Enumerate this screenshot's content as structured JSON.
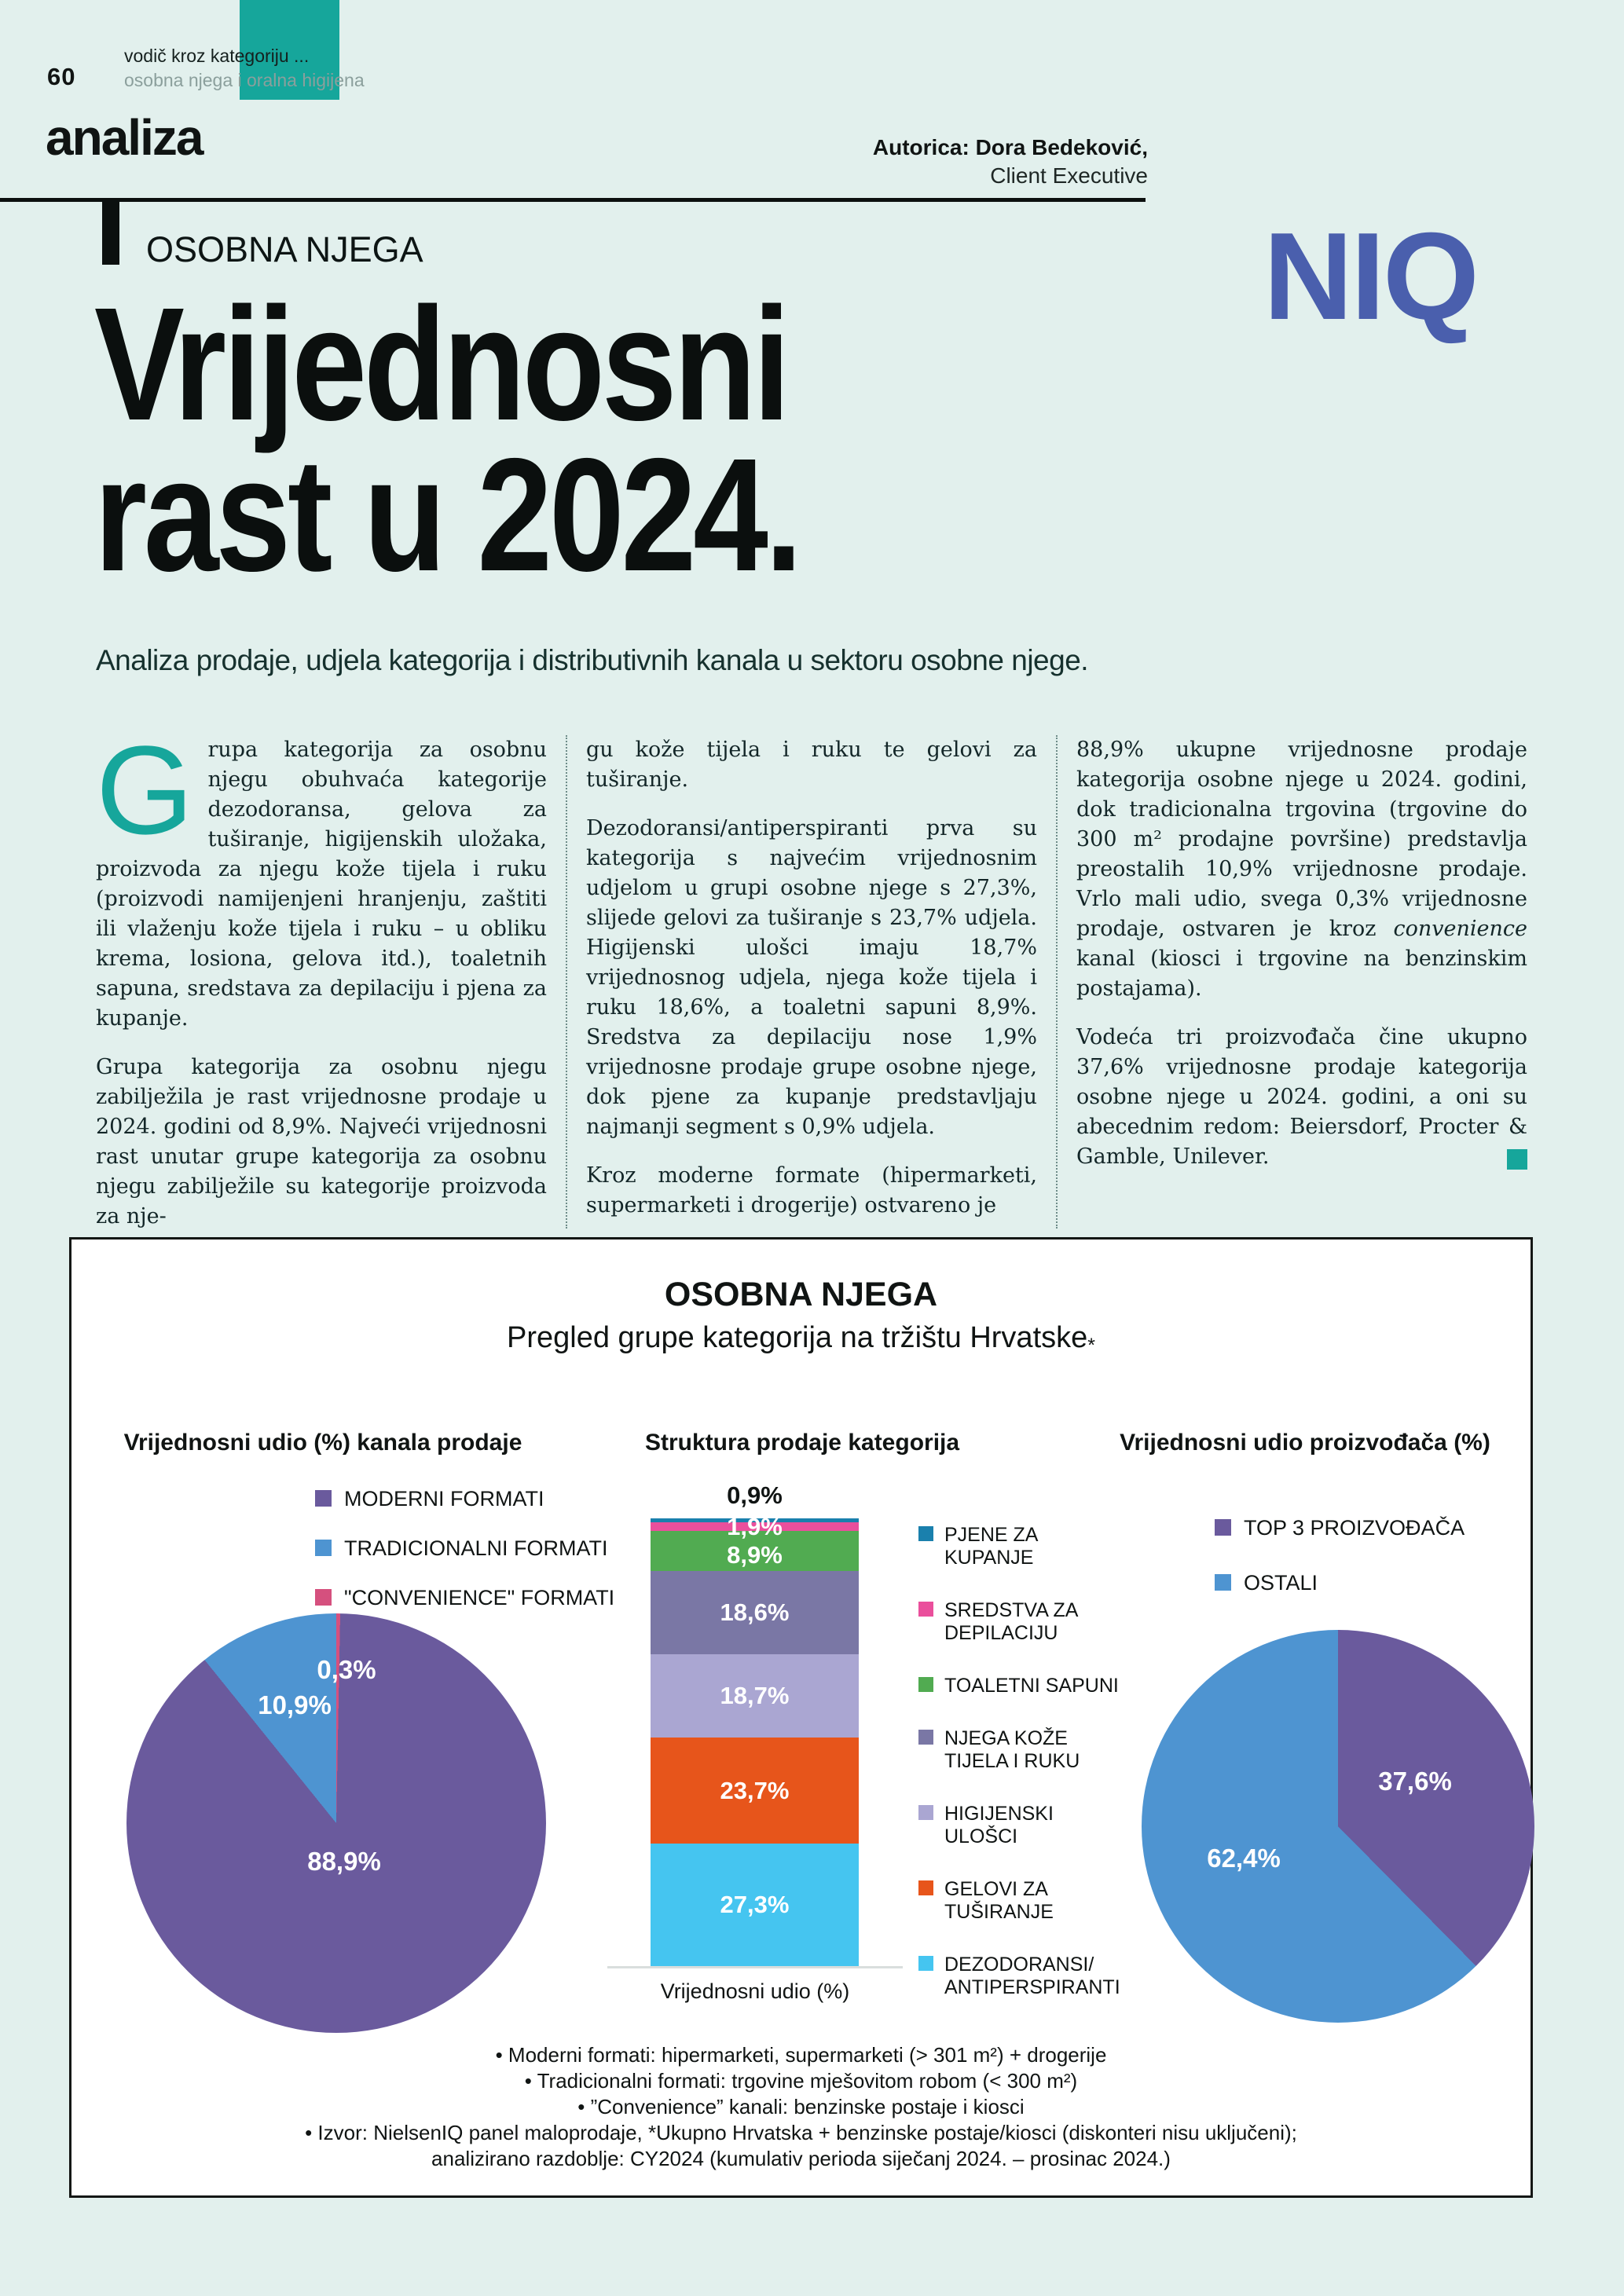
{
  "colors": {
    "background": "#e2f0ed",
    "accent_teal": "#16a69b",
    "niq_blue": "#4a5fad",
    "ink": "#101413",
    "kicker_gray": "#8b9f9c",
    "pie_purple": "#6a5a9d",
    "pie_blue": "#4e94d1",
    "pie_pink": "#d5507e"
  },
  "header": {
    "page_number": "60",
    "kicker_line1": "vodič kroz kategoriju ...",
    "kicker_line2": "osobna njega i oralna higijena",
    "section": "analiza",
    "author_name": "Autorica: Dora Bedeković,",
    "author_role": "Client Executive"
  },
  "hero": {
    "eyebrow": "OSOBNA NJEGA",
    "title_line1": "Vrijednosni",
    "title_line2": "rast u 2024.",
    "logo_text": "NIQ",
    "lede": "Analiza prodaje, udjela kategorija i distributivnih kanala u sektoru osobne njege."
  },
  "article": {
    "col1": {
      "dropcap": "G",
      "p1": "rupa kategorija za osobnu njegu obuhvaća kategorije dezodoransa, gelova za tuširanje, higijenskih uložaka, proizvoda za njegu kože tijela i ruku (proizvodi namijenjeni hranjenju, zaštiti ili vlaženju kože tijela i ruku – u obliku krema, losiona, gelova itd.), toaletnih sapuna, sredstava za depilaciju i pjena za kupanje.",
      "p2": "Grupa kategorija za osobnu njegu zabilježila je rast vrijednosne prodaje u 2024. godini od 8,9%. Najveći vrijednosni rast unutar grupe kategorija za osobnu njegu zabilježile su kategorije proizvoda za nje-"
    },
    "col2": {
      "p1": "gu kože tijela i ruku te gelovi za tuširanje.",
      "p2": "Dezodoransi/antiperspiranti prva su kategorija s najvećim vrijednosnim udjelom u grupi osobne njege s 27,3%, slijede gelovi za tuširanje s 23,7% udjela. Higijenski ulošci imaju 18,7% vrijednosnog udjela, njega kože tijela i ruku 18,6%, a toaletni sapuni 8,9%. Sredstva za depilaciju nose 1,9% vrijednosne prodaje grupe osobne njege, dok pjene za kupanje predstavljaju najmanji segment s 0,9% udjela.",
      "p3": "Kroz moderne formate (hipermarketi, supermarketi i drogerije) ostvareno je"
    },
    "col3": {
      "p1_pre": "88,9% ukupne vrijednosne prodaje kategorija osobne njege u 2024. godini, dok tradicionalna trgovina (trgovine do 300 m² prodajne površine) predstavlja preostalih 10,9% vrijednosne prodaje. Vrlo mali udio, svega 0,3% vrijednosne prodaje, ostvaren je kroz ",
      "p1_italic": "convenience",
      "p1_post": " kanal (kiosci i trgovine na benzinskim postajama).",
      "p2": "Vodeća tri proizvođača čine ukupno 37,6% vrijednosne prodaje kategorija osobne njege u 2024. godini, a oni su abecednim redom: Beiersdorf, Procter & Gamble, Unilever."
    }
  },
  "infographic": {
    "title": "OSOBNA NJEGA",
    "subtitle": "Pregled grupe kategorija na tržištu Hrvatske",
    "subtitle_mark": "*",
    "footnotes": [
      "•    Moderni formati: hipermarketi, supermarketi (> 301 m²) + drogerije",
      "•    Tradicionalni formati: trgovine mješovitom robom (< 300 m²)",
      "•    ”Convenience” kanali: benzinske postaje i kiosci",
      "•    Izvor: NielsenIQ panel maloprodaje, *Ukupno Hrvatska + benzinske postaje/kiosci  (diskonteri nisu uključeni);",
      "analizirano razdoblje: CY2024 (kumulativ perioda siječanj 2024. – prosinac 2024.)"
    ]
  },
  "chart_data": [
    {
      "type": "pie",
      "title": "Vrijednosni udio (%) kanala prodaje",
      "start_angle_deg": 0,
      "direction": "clockwise",
      "slices": [
        {
          "label": "\"CONVENIENCE\" FORMATI",
          "value": 0.3,
          "value_label": "0,3%",
          "color": "#d5507e"
        },
        {
          "label": "MODERNI FORMATI",
          "value": 88.9,
          "value_label": "88,9%",
          "color": "#6a5a9d"
        },
        {
          "label": "TRADICIONALNI FORMATI",
          "value": 10.9,
          "value_label": "10,9%",
          "color": "#4e94d1"
        }
      ],
      "legend": [
        {
          "label": "MODERNI FORMATI",
          "color": "#6a5a9d"
        },
        {
          "label": "TRADICIONALNI FORMATI",
          "color": "#4e94d1"
        },
        {
          "label": "\"CONVENIENCE\" FORMATI",
          "color": "#d5507e"
        }
      ],
      "legend_position": "above"
    },
    {
      "type": "bar",
      "subtype": "stacked-column",
      "title": "Struktura prodaje kategorija",
      "xlabel": "Vrijednosni udio (%)",
      "ylim": [
        0,
        100
      ],
      "segments_top_to_bottom": [
        {
          "label": "PJENE ZA KUPANJE",
          "value": 0.9,
          "value_label": "0,9%",
          "color": "#1a80ad"
        },
        {
          "label": "SREDSTVA ZA DEPILACIJU",
          "value": 1.9,
          "value_label": "1,9%",
          "color": "#ea4f9c"
        },
        {
          "label": "TOALETNI SAPUNI",
          "value": 8.9,
          "value_label": "8,9%",
          "color": "#51ab51"
        },
        {
          "label": "NJEGA KOŽE TIJELA I RUKU",
          "value": 18.6,
          "value_label": "18,6%",
          "color": "#7a77a5"
        },
        {
          "label": "HIGIJENSKI ULOŠCI",
          "value": 18.7,
          "value_label": "18,7%",
          "color": "#aaa6d2"
        },
        {
          "label": "GELOVI ZA TUŠIRANJE",
          "value": 23.7,
          "value_label": "23,7%",
          "color": "#e7551b"
        },
        {
          "label": "DEZODORANSI/ANTIPERSPIRANTI",
          "value": 27.3,
          "value_label": "27,3%",
          "color": "#45c5f0"
        }
      ],
      "legend": [
        {
          "label": "PJENE ZA\nKUPANJE",
          "color": "#1a80ad"
        },
        {
          "label": "SREDSTVA ZA\nDEPILACIJU",
          "color": "#ea4f9c"
        },
        {
          "label": "TOALETNI SAPUNI",
          "color": "#51ab51"
        },
        {
          "label": "NJEGA KOŽE\nTIJELA I RUKU",
          "color": "#7a77a5"
        },
        {
          "label": "HIGIJENSKI\nULOŠCI",
          "color": "#aaa6d2"
        },
        {
          "label": "GELOVI ZA\nTUŠIRANJE",
          "color": "#e7551b"
        },
        {
          "label": "DEZODORANSI/\nANTIPERSPIRANTI",
          "color": "#45c5f0"
        }
      ],
      "legend_position": "right"
    },
    {
      "type": "pie",
      "title": "Vrijednosni udio proizvođača (%)",
      "start_angle_deg": 0,
      "direction": "clockwise",
      "slices": [
        {
          "label": "TOP 3 PROIZVOĐAČA",
          "value": 37.6,
          "value_label": "37,6%",
          "color": "#6a5a9d"
        },
        {
          "label": "OSTALI",
          "value": 62.4,
          "value_label": "62,4%",
          "color": "#4e94d1"
        }
      ],
      "legend": [
        {
          "label": "TOP 3 PROIZVOĐAČA",
          "color": "#6a5a9d"
        },
        {
          "label": "OSTALI",
          "color": "#4e94d1"
        }
      ],
      "legend_position": "above"
    }
  ]
}
